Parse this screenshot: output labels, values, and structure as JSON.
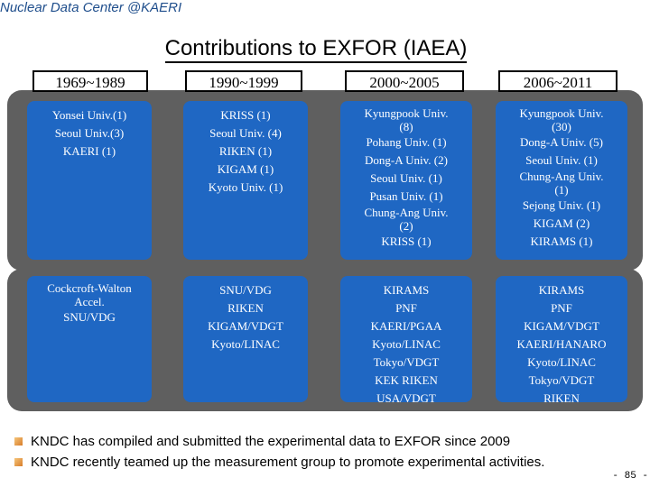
{
  "header": {
    "org": "Nuclear Data Center @KAERI"
  },
  "title": "Contributions to EXFOR (IAEA)",
  "columns": [
    {
      "period": "1969~1989",
      "institutions": [
        "Yonsei Univ.(1)",
        "Seoul Univ.(3)",
        "KAERI (1)"
      ],
      "facilities": [
        "Cockcroft-Walton",
        "Accel.",
        "SNU/VDG"
      ]
    },
    {
      "period": "1990~1999",
      "institutions": [
        "KRISS (1)",
        "Seoul Univ. (4)",
        "RIKEN (1)",
        "KIGAM (1)",
        "Kyoto Univ. (1)"
      ],
      "facilities": [
        "SNU/VDG",
        "RIKEN",
        "KIGAM/VDGT",
        "Kyoto/LINAC"
      ]
    },
    {
      "period": "2000~2005",
      "institutions": [
        "Kyungpook Univ.",
        "(8)",
        "Pohang Univ. (1)",
        "Dong-A Univ. (2)",
        "Seoul Univ. (1)",
        "Pusan Univ. (1)",
        "Chung-Ang Univ.",
        "(2)",
        "KRISS (1)"
      ],
      "facilities": [
        "KIRAMS",
        "PNF",
        "KAERI/PGAA",
        "Kyoto/LINAC",
        "Tokyo/VDGT",
        "KEK RIKEN",
        "USA/VDGT"
      ]
    },
    {
      "period": "2006~2011",
      "institutions": [
        "Kyungpook Univ.",
        "(30)",
        "Dong-A Univ. (5)",
        "Seoul Univ. (1)",
        "Chung-Ang Univ.",
        "(1)",
        "Sejong Univ. (1)",
        "KIGAM (2)",
        "KIRAMS (1)"
      ],
      "facilities": [
        "KIRAMS",
        "PNF",
        "KIGAM/VDGT",
        "KAERI/HANARO",
        "Kyoto/LINAC",
        "Tokyo/VDGT",
        "RIKEN"
      ]
    }
  ],
  "bullets": [
    "KNDC  has compiled and submitted the experimental data to EXFOR since 2009",
    "KNDC  recently teamed up the measurement group to promote  experimental activities."
  ],
  "page_number": "- 85 -",
  "colors": {
    "cell_blue": "#1f67c3",
    "band_gray": "#5f5f5f",
    "header_blue": "#1f4e8c"
  }
}
